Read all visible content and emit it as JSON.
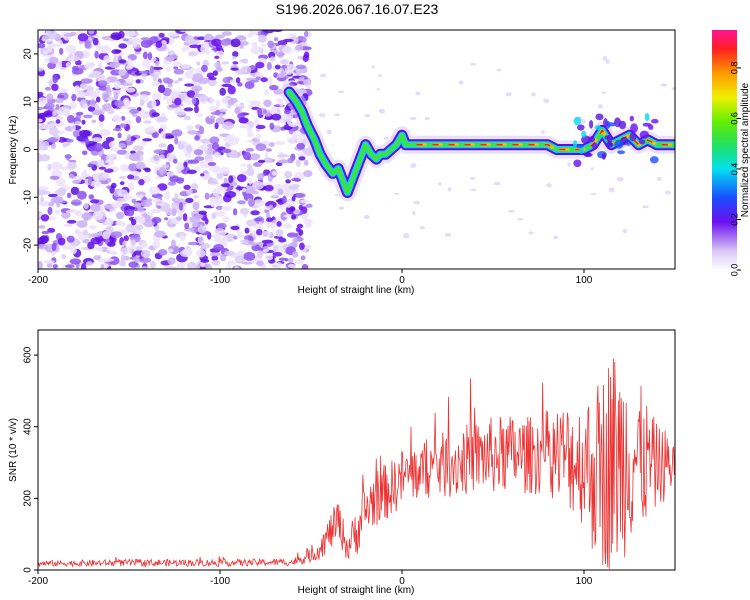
{
  "title": "S196.2026.067.16.07.E23",
  "chart_data": [
    {
      "type": "heatmap",
      "name": "spectrogram",
      "xlabel": "Height of straight line (km)",
      "ylabel": "Frequency (Hz)",
      "xlim": [
        -200,
        150
      ],
      "ylim": [
        -25,
        25
      ],
      "xticks": [
        -200,
        -100,
        0,
        100
      ],
      "yticks": [
        -20,
        -10,
        0,
        10,
        20
      ],
      "colorbar": {
        "label": "Normalized spectral amplitude",
        "range": [
          0.0,
          0.95
        ],
        "ticks": [
          0.0,
          0.2,
          0.4,
          0.6,
          0.8
        ]
      },
      "noise_region": {
        "x_start": -200,
        "x_end": -55,
        "ymin": -25,
        "ymax": 25
      },
      "signal_trace": {
        "x": [
          -62,
          -58,
          -55,
          -52,
          -48,
          -45,
          -42,
          -38,
          -35,
          -32,
          -30,
          -28,
          -25,
          -22,
          -20,
          -17,
          -14,
          -12,
          -9,
          -6,
          -3,
          0,
          2,
          5,
          8,
          12,
          20,
          30,
          40,
          50,
          60,
          70,
          80,
          85,
          90,
          95,
          100,
          105,
          110,
          115,
          120,
          125,
          130,
          135,
          140,
          150
        ],
        "y": [
          12,
          10,
          8,
          5,
          2,
          -1,
          -3,
          -5,
          -4,
          -7,
          -9,
          -7,
          -4,
          -1,
          1,
          -1,
          -2,
          -1,
          -1,
          0,
          1,
          3,
          1,
          1,
          1,
          1,
          1,
          1,
          1,
          1,
          1,
          1,
          1,
          0,
          0,
          0,
          0,
          1,
          4,
          1,
          2,
          3,
          1,
          2,
          1,
          1
        ]
      }
    },
    {
      "type": "line",
      "name": "snr",
      "xlabel": "Height of straight line (km)",
      "ylabel": "SNR (10 * v/v)",
      "xlim": [
        -200,
        150
      ],
      "ylim": [
        0,
        670
      ],
      "xticks": [
        -200,
        -100,
        0,
        100
      ],
      "yticks": [
        0,
        200,
        400,
        600
      ],
      "color": "#ee3333",
      "series": [
        {
          "name": "SNR",
          "x": [
            -200,
            -150,
            -100,
            -60,
            -50,
            -45,
            -40,
            -35,
            -30,
            -25,
            -20,
            -15,
            -10,
            -5,
            0,
            10,
            20,
            30,
            40,
            50,
            60,
            70,
            80,
            90,
            100,
            105,
            110,
            115,
            120,
            125,
            130,
            140,
            150
          ],
          "y": [
            18,
            20,
            20,
            22,
            40,
            60,
            100,
            140,
            60,
            110,
            165,
            200,
            215,
            230,
            260,
            275,
            290,
            300,
            315,
            320,
            325,
            320,
            330,
            320,
            300,
            280,
            270,
            320,
            300,
            330,
            310,
            290,
            300
          ],
          "spread": [
            8,
            10,
            10,
            10,
            20,
            30,
            50,
            60,
            40,
            70,
            80,
            80,
            80,
            80,
            80,
            80,
            90,
            100,
            100,
            110,
            110,
            110,
            120,
            150,
            180,
            240,
            280,
            320,
            300,
            260,
            220,
            120,
            80
          ]
        }
      ]
    }
  ]
}
